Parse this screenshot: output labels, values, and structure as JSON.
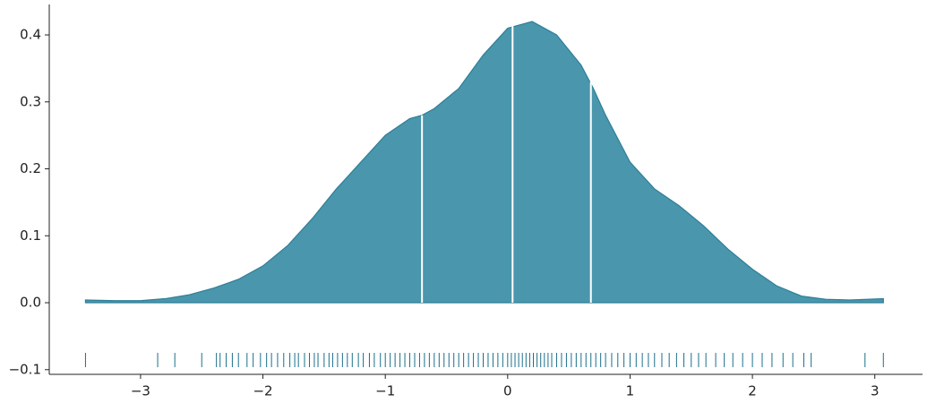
{
  "chart_data": {
    "type": "kde",
    "x": [
      -3.45,
      -3.2,
      -3.0,
      -2.8,
      -2.6,
      -2.4,
      -2.2,
      -2.0,
      -1.8,
      -1.6,
      -1.4,
      -1.2,
      -1.0,
      -0.8,
      -0.7,
      -0.6,
      -0.4,
      -0.2,
      0.0,
      0.2,
      0.4,
      0.6,
      0.7,
      0.8,
      1.0,
      1.2,
      1.4,
      1.6,
      1.8,
      2.0,
      2.2,
      2.4,
      2.6,
      2.8,
      3.07
    ],
    "values": [
      0.004,
      0.003,
      0.003,
      0.006,
      0.012,
      0.022,
      0.035,
      0.055,
      0.085,
      0.125,
      0.17,
      0.21,
      0.25,
      0.275,
      0.28,
      0.29,
      0.32,
      0.37,
      0.41,
      0.42,
      0.4,
      0.355,
      0.32,
      0.28,
      0.21,
      0.17,
      0.145,
      0.115,
      0.08,
      0.05,
      0.025,
      0.01,
      0.005,
      0.004,
      0.006
    ],
    "quartiles": {
      "x": [
        -0.7,
        0.04,
        0.68
      ],
      "values": [
        0.28,
        0.415,
        0.33
      ]
    },
    "rug": [
      -3.45,
      -2.86,
      -2.72,
      -2.5,
      -2.38,
      -2.35,
      -2.3,
      -2.25,
      -2.2,
      -2.13,
      -2.08,
      -2.02,
      -1.97,
      -1.93,
      -1.88,
      -1.83,
      -1.78,
      -1.74,
      -1.71,
      -1.66,
      -1.62,
      -1.58,
      -1.55,
      -1.5,
      -1.46,
      -1.43,
      -1.39,
      -1.35,
      -1.31,
      -1.27,
      -1.22,
      -1.18,
      -1.13,
      -1.09,
      -1.04,
      -1.0,
      -0.96,
      -0.92,
      -0.88,
      -0.84,
      -0.8,
      -0.76,
      -0.72,
      -0.68,
      -0.64,
      -0.6,
      -0.56,
      -0.52,
      -0.48,
      -0.44,
      -0.4,
      -0.36,
      -0.32,
      -0.28,
      -0.24,
      -0.2,
      -0.16,
      -0.12,
      -0.08,
      -0.04,
      0,
      0.03,
      0.06,
      0.09,
      0.12,
      0.15,
      0.18,
      0.21,
      0.24,
      0.27,
      0.3,
      0.33,
      0.36,
      0.4,
      0.44,
      0.48,
      0.52,
      0.56,
      0.6,
      0.64,
      0.68,
      0.72,
      0.76,
      0.8,
      0.85,
      0.9,
      0.95,
      1.0,
      1.05,
      1.1,
      1.15,
      1.2,
      1.26,
      1.32,
      1.38,
      1.44,
      1.5,
      1.56,
      1.62,
      1.7,
      1.77,
      1.84,
      1.92,
      2.0,
      2.08,
      2.16,
      2.25,
      2.33,
      2.42,
      2.48,
      2.92,
      3.07
    ],
    "color": "#4a96ac",
    "edge_color": "#2e7f98",
    "rug_color": "#1a6f8a",
    "xlim": [
      -3.746,
      3.39
    ],
    "ylim": [
      -0.107,
      0.4455
    ],
    "xticks": [
      {
        "value": -3,
        "label": "−3"
      },
      {
        "value": -2,
        "label": "−2"
      },
      {
        "value": -1,
        "label": "−1"
      },
      0,
      1,
      2,
      3
    ],
    "yticks": [
      {
        "value": -0.1,
        "label": "−0.1"
      },
      {
        "value": 0,
        "label": "0.0"
      },
      0.1,
      0.2,
      0.3,
      0.4
    ]
  }
}
